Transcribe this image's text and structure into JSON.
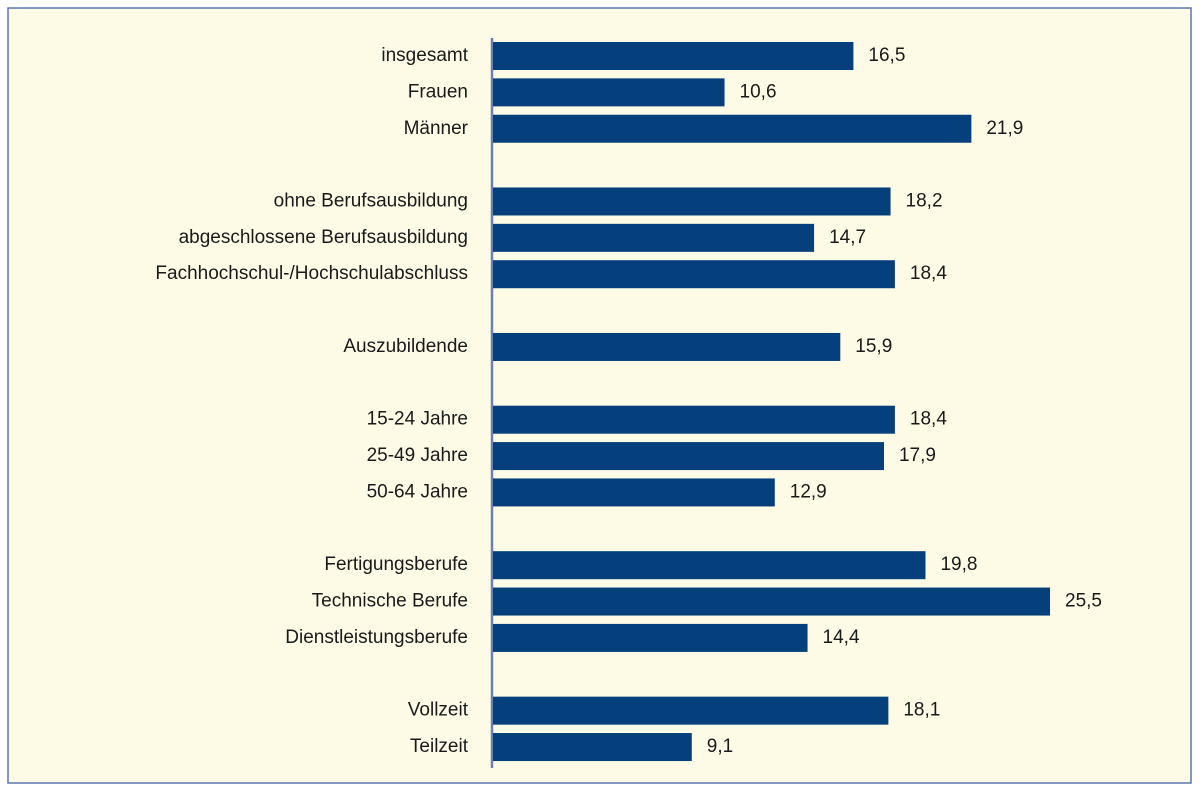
{
  "chart_data": {
    "type": "hbar",
    "categories": [
      "insgesamt",
      "Frauen",
      "Männer",
      null,
      "ohne Berufsausbildung",
      "abgeschlossene Berufsausbildung",
      "Fachhochschul-/Hochschulabschluss",
      null,
      "Auszubildende",
      null,
      "15-24 Jahre",
      "25-49 Jahre",
      "50-64 Jahre",
      null,
      "Fertigungsberufe",
      "Technische Berufe",
      "Dienstleistungsberufe",
      null,
      "Vollzeit",
      "Teilzeit"
    ],
    "values": [
      16.5,
      10.6,
      21.9,
      null,
      18.2,
      14.7,
      18.4,
      null,
      15.9,
      null,
      18.4,
      17.9,
      12.9,
      null,
      19.8,
      25.5,
      14.4,
      null,
      18.1,
      9.1
    ],
    "value_labels": [
      "16,5",
      "10,6",
      "21,9",
      null,
      "18,2",
      "14,7",
      "18,4",
      null,
      "15,9",
      null,
      "18,4",
      "17,9",
      "12,9",
      null,
      "19,8",
      "25,5",
      "14,4",
      null,
      "18,1",
      "9,1"
    ],
    "color": "#053f7c"
  }
}
